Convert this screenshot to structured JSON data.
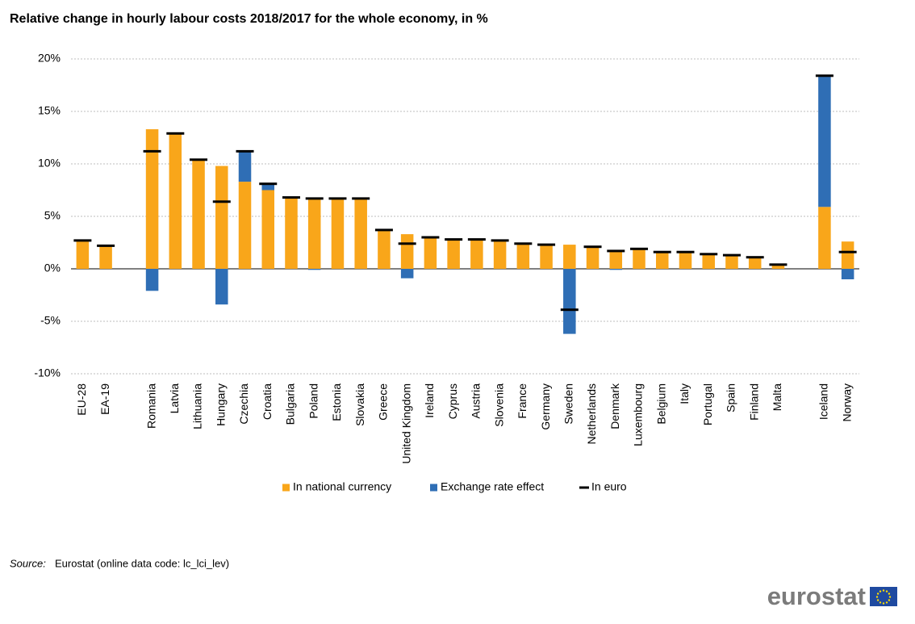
{
  "chart_data": {
    "type": "bar",
    "stacked": true,
    "title": "Relative change in hourly labour costs 2018/2017 for the whole economy, in %",
    "categories": [
      "EU-28",
      "EA-19",
      null,
      "Romania",
      "Latvia",
      "Lithuania",
      "Hungary",
      "Czechia",
      "Croatia",
      "Bulgaria",
      "Poland",
      "Estonia",
      "Slovakia",
      "Greece",
      "United Kingdom",
      "Ireland",
      "Cyprus",
      "Austria",
      "Slovenia",
      "France",
      "Germany",
      "Sweden",
      "Netherlands",
      "Denmark",
      "Luxembourg",
      "Belgium",
      "Italy",
      "Portugal",
      "Spain",
      "Finland",
      "Malta",
      null,
      "Iceland",
      "Norway"
    ],
    "series": [
      {
        "name": "In national currency",
        "color": "#f9a61a",
        "type": "bar",
        "values": [
          2.7,
          2.2,
          null,
          13.3,
          12.9,
          10.4,
          9.8,
          8.3,
          7.5,
          6.8,
          6.7,
          6.7,
          6.7,
          3.7,
          3.3,
          3.0,
          2.8,
          2.8,
          2.7,
          2.4,
          2.3,
          2.3,
          2.1,
          1.7,
          1.9,
          1.6,
          1.6,
          1.4,
          1.3,
          1.1,
          0.4,
          null,
          5.9,
          2.6
        ]
      },
      {
        "name": "Exchange rate effect",
        "color": "#2f6eb5",
        "type": "bar",
        "values": [
          0,
          0,
          null,
          -2.1,
          0,
          0,
          -3.4,
          2.9,
          0.6,
          0,
          -0.1,
          0,
          0,
          0,
          -0.9,
          0,
          0,
          0,
          0,
          0,
          0,
          -6.2,
          0,
          -0.1,
          0,
          0,
          0,
          0,
          0,
          0,
          0,
          null,
          12.4,
          -1.0
        ]
      },
      {
        "name": "In euro",
        "color": "#000000",
        "type": "marker",
        "values": [
          2.7,
          2.2,
          null,
          11.2,
          12.9,
          10.4,
          6.4,
          11.2,
          8.1,
          6.8,
          6.7,
          6.7,
          6.7,
          3.7,
          2.4,
          3.0,
          2.8,
          2.8,
          2.7,
          2.4,
          2.3,
          -3.9,
          2.1,
          1.7,
          1.9,
          1.6,
          1.6,
          1.4,
          1.3,
          1.1,
          0.4,
          null,
          18.4,
          1.6
        ]
      }
    ],
    "ylim": [
      -10,
      20
    ],
    "yticks": [
      {
        "value": -10,
        "label": "-10%"
      },
      {
        "value": -5,
        "label": "-5%"
      },
      {
        "value": 0,
        "label": "0%"
      },
      {
        "value": 5,
        "label": "5%"
      },
      {
        "value": 10,
        "label": "10%"
      },
      {
        "value": 15,
        "label": "15%"
      },
      {
        "value": 20,
        "label": "20%"
      }
    ],
    "grid": true,
    "legend": "bottom"
  },
  "source": {
    "label": "Source:",
    "text": "Eurostat (online data code: lc_lci_lev)"
  },
  "logo": "eurostat"
}
